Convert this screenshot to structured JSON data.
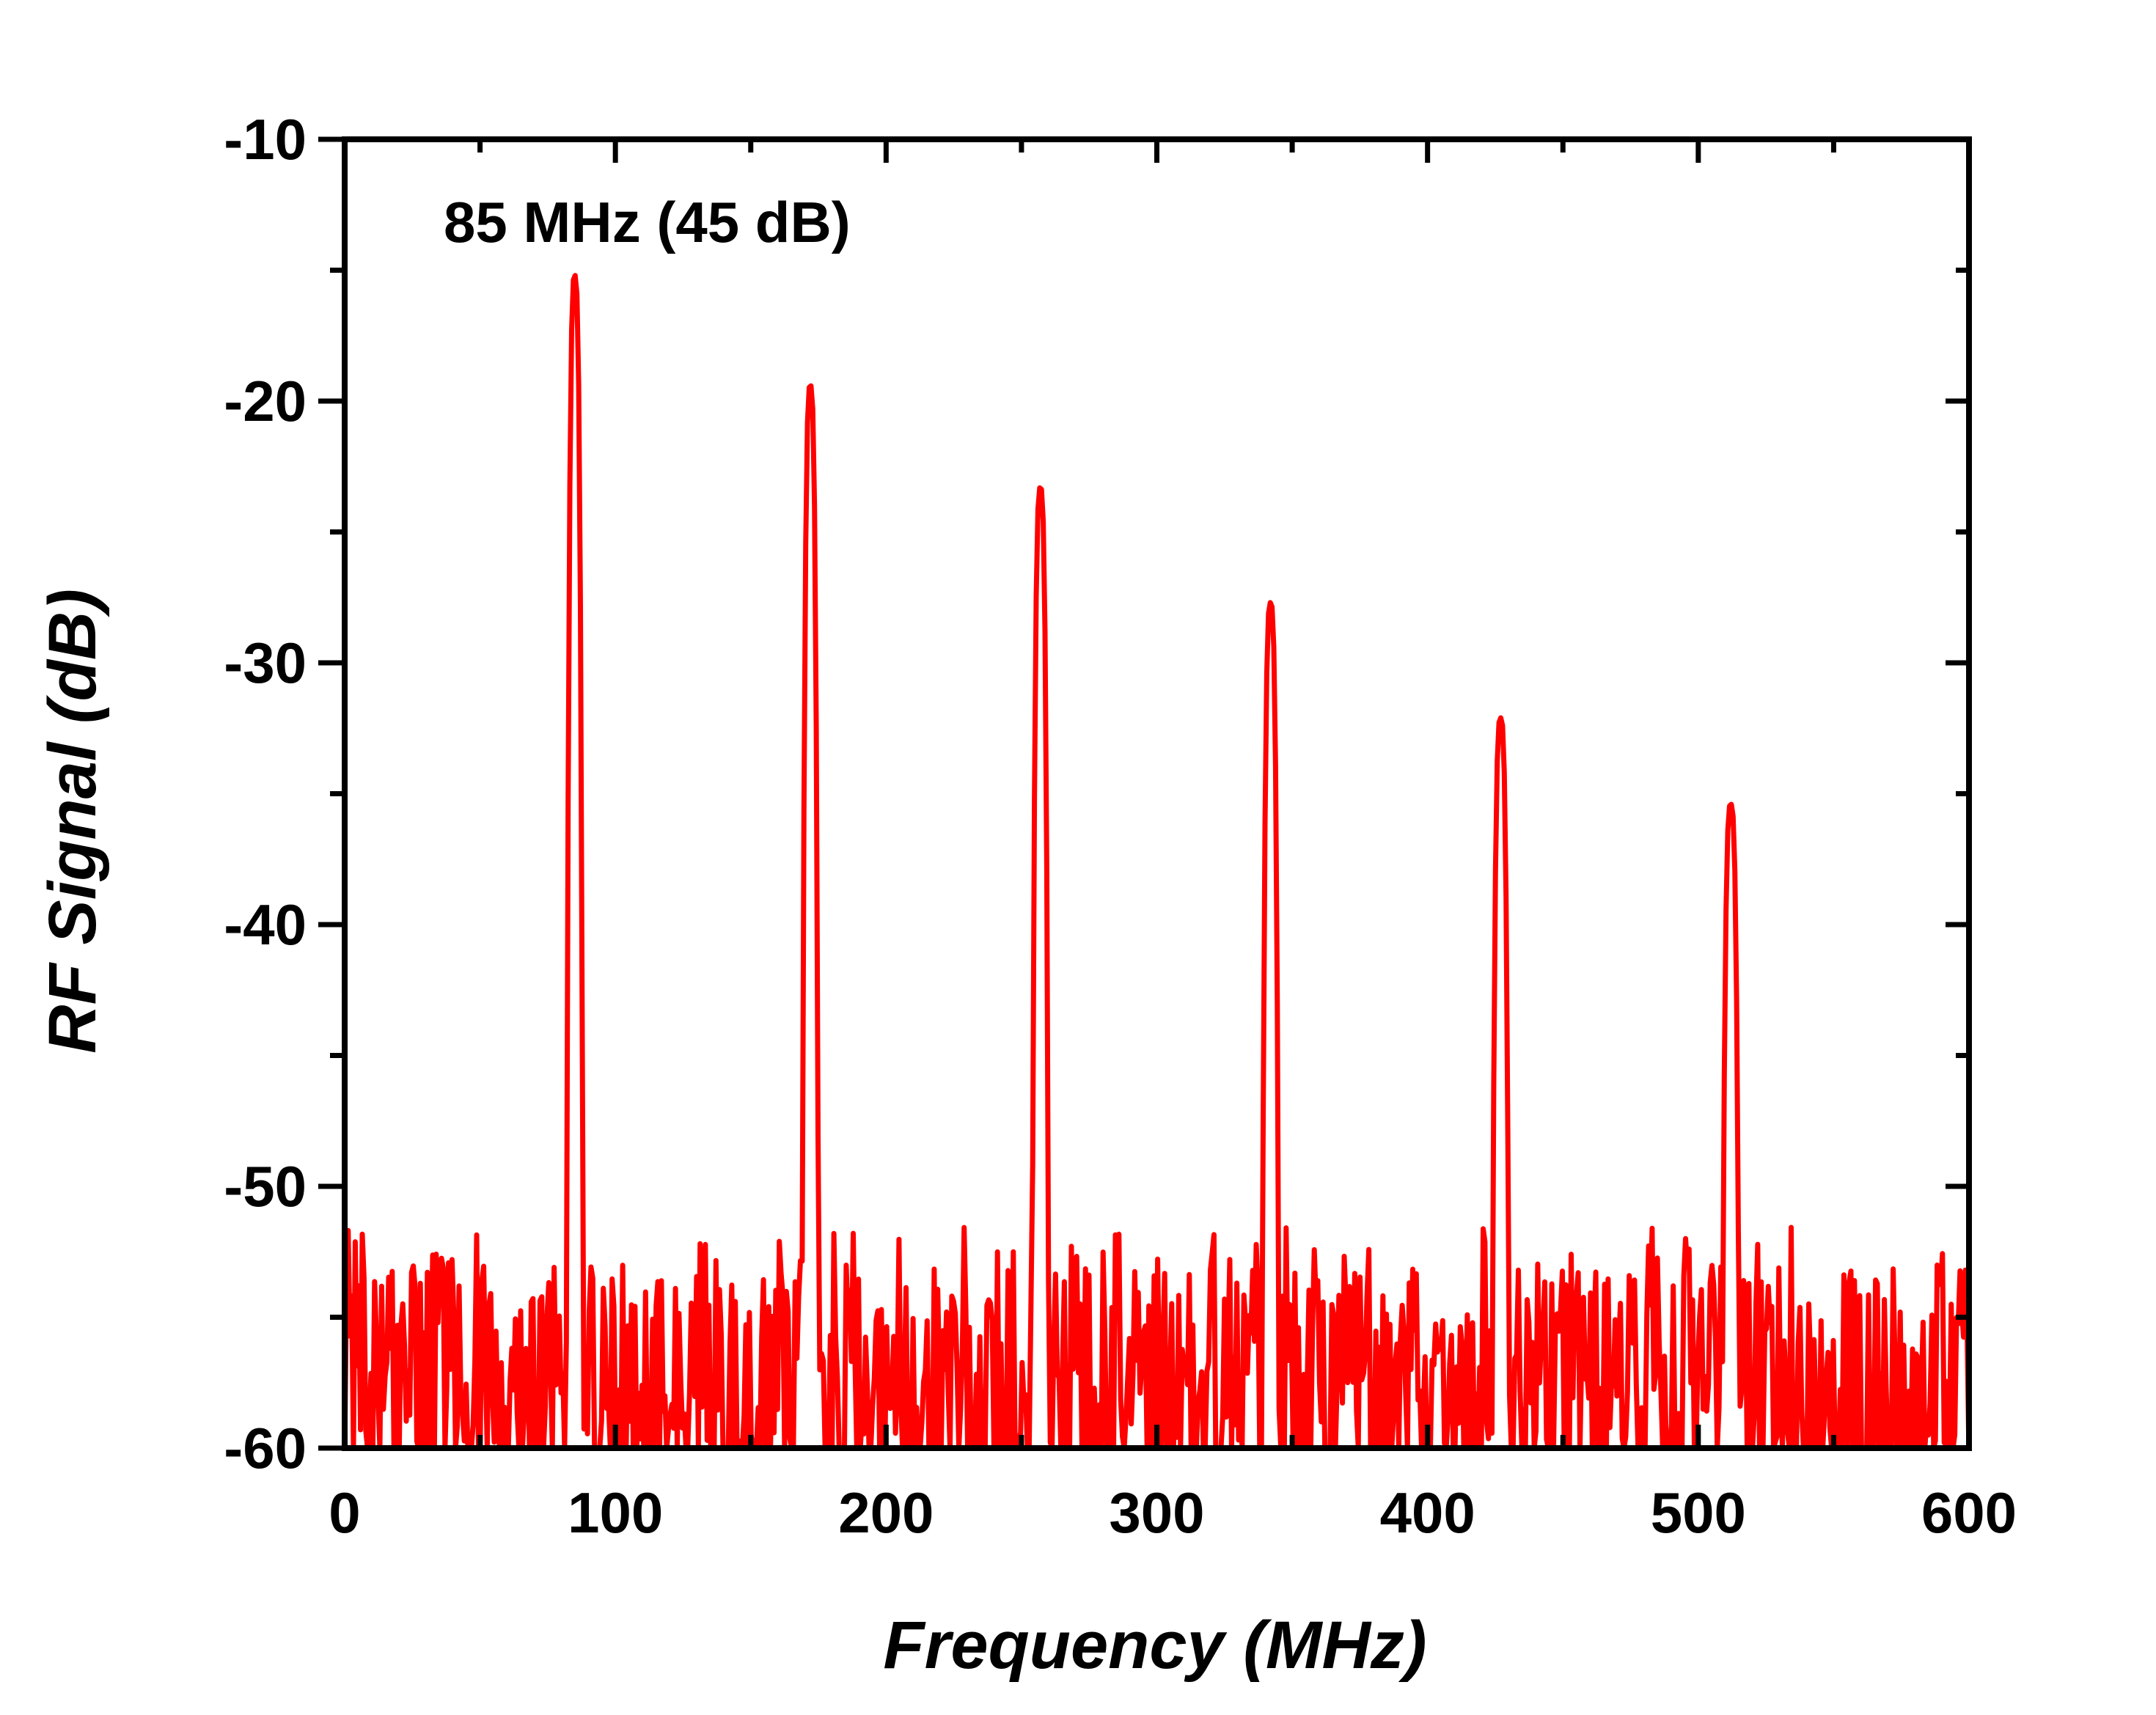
{
  "chart_data": {
    "type": "line",
    "title": "",
    "xlabel": "Frequency (MHz)",
    "ylabel": "RF Signal (dB)",
    "xlim": [
      0,
      600
    ],
    "ylim": [
      -60,
      -10
    ],
    "xticks": [
      0,
      100,
      200,
      300,
      400,
      500,
      600
    ],
    "xtick_labels": [
      "0",
      "100",
      "200",
      "300",
      "400",
      "500",
      "600"
    ],
    "yticks": [
      -60,
      -50,
      -40,
      -30,
      -20,
      -10
    ],
    "ytick_labels": [
      "-60",
      "-50",
      "-40",
      "-30",
      "-20",
      "-10"
    ],
    "grid": false,
    "series_color": "#ff0000",
    "annotation": "85 MHz (45 dB)",
    "peaks": [
      {
        "x": 85,
        "y": -15.2
      },
      {
        "x": 172,
        "y": -19.4
      },
      {
        "x": 257,
        "y": -23.3
      },
      {
        "x": 342,
        "y": -27.7
      },
      {
        "x": 427,
        "y": -32.1
      },
      {
        "x": 512,
        "y": -35.4
      }
    ],
    "noise_floor": {
      "min": -60,
      "typical_max": -54,
      "max": -51.5
    }
  }
}
